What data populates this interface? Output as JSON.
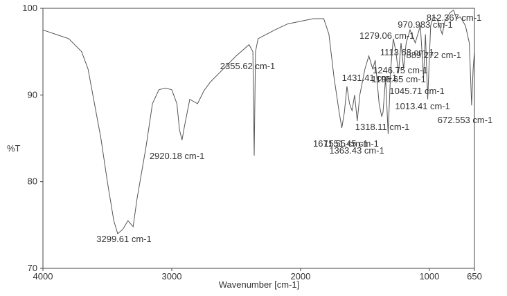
{
  "chart_data": {
    "type": "line",
    "xlabel": "Wavenumber [cm-1]",
    "ylabel": "%T",
    "xlim": [
      4000,
      650
    ],
    "ylim": [
      70,
      100
    ],
    "xticks": [
      4000,
      3000,
      2000,
      1000,
      650
    ],
    "yticks": [
      70,
      80,
      90,
      100
    ],
    "x": [
      4000,
      3900,
      3800,
      3700,
      3650,
      3600,
      3550,
      3500,
      3450,
      3420,
      3380,
      3340,
      3300,
      3270,
      3200,
      3150,
      3100,
      3050,
      3000,
      2960,
      2940,
      2920,
      2900,
      2860,
      2800,
      2750,
      2700,
      2600,
      2500,
      2400,
      2370,
      2360,
      2350,
      2330,
      2200,
      2100,
      2000,
      1900,
      1820,
      1780,
      1740,
      1700,
      1680,
      1660,
      1640,
      1620,
      1600,
      1580,
      1560,
      1540,
      1500,
      1470,
      1440,
      1420,
      1390,
      1370,
      1360,
      1340,
      1320,
      1300,
      1280,
      1260,
      1240,
      1220,
      1200,
      1180,
      1150,
      1110,
      1070,
      1045,
      1030,
      1013,
      990,
      970,
      940,
      900,
      880,
      840,
      812,
      790,
      760,
      720,
      690,
      672,
      660,
      650
    ],
    "series": [
      {
        "color": "#555555",
        "values": [
          97.5,
          97,
          96.5,
          95,
          93,
          89,
          85,
          80,
          75.5,
          74,
          74.5,
          75.5,
          74.8,
          78,
          84,
          89,
          90.6,
          90.8,
          90.6,
          89,
          86,
          84.8,
          86.5,
          89.5,
          89,
          90.5,
          91.5,
          93,
          94.5,
          95.8,
          95,
          83,
          95,
          96.5,
          97.5,
          98.2,
          98.5,
          98.8,
          98.8,
          97,
          92,
          88,
          86.2,
          88,
          91,
          89,
          88.2,
          90,
          87,
          90,
          93,
          94.5,
          93,
          94,
          89,
          87.5,
          88,
          92,
          85.5,
          93,
          96.5,
          95,
          92.5,
          96,
          93,
          96,
          97.5,
          96,
          98,
          92,
          97,
          89.5,
          98,
          99,
          98.8,
          97,
          98.5,
          99.5,
          99.8,
          98.8,
          99,
          98,
          96,
          88.8,
          93,
          95
        ]
      }
    ],
    "peaks": [
      {
        "label": "3299.61 cm-1",
        "x": 3299.61
      },
      {
        "label": "2920.18 cm-1",
        "x": 2920.18
      },
      {
        "label": "2355.62 cm-1",
        "x": 2355.62
      },
      {
        "label": "1671.55 cm-1",
        "x": 1671.55
      },
      {
        "label": "1551.45 cm-1",
        "x": 1551.45
      },
      {
        "label": "1431.41 cm-1",
        "x": 1431.41
      },
      {
        "label": "1363.43 cm-1",
        "x": 1363.43
      },
      {
        "label": "1318.11 cm-1",
        "x": 1318.11
      },
      {
        "label": "1279.06 cm-1",
        "x": 1279.06
      },
      {
        "label": "1246.75 cm-1",
        "x": 1246.75
      },
      {
        "label": "1196.65 cm-1",
        "x": 1196.65
      },
      {
        "label": "1113.68 cm-1",
        "x": 1113.68
      },
      {
        "label": "1045.71 cm-1",
        "x": 1045.71
      },
      {
        "label": "1013.41 cm-1",
        "x": 1013.41
      },
      {
        "label": "970.983 cm-1",
        "x": 970.983
      },
      {
        "label": "889.272 cm-1",
        "x": 889.272
      },
      {
        "label": "812.367 cm-1",
        "x": 812.367
      },
      {
        "label": "672.553 cm-1",
        "x": 672.553
      }
    ]
  }
}
